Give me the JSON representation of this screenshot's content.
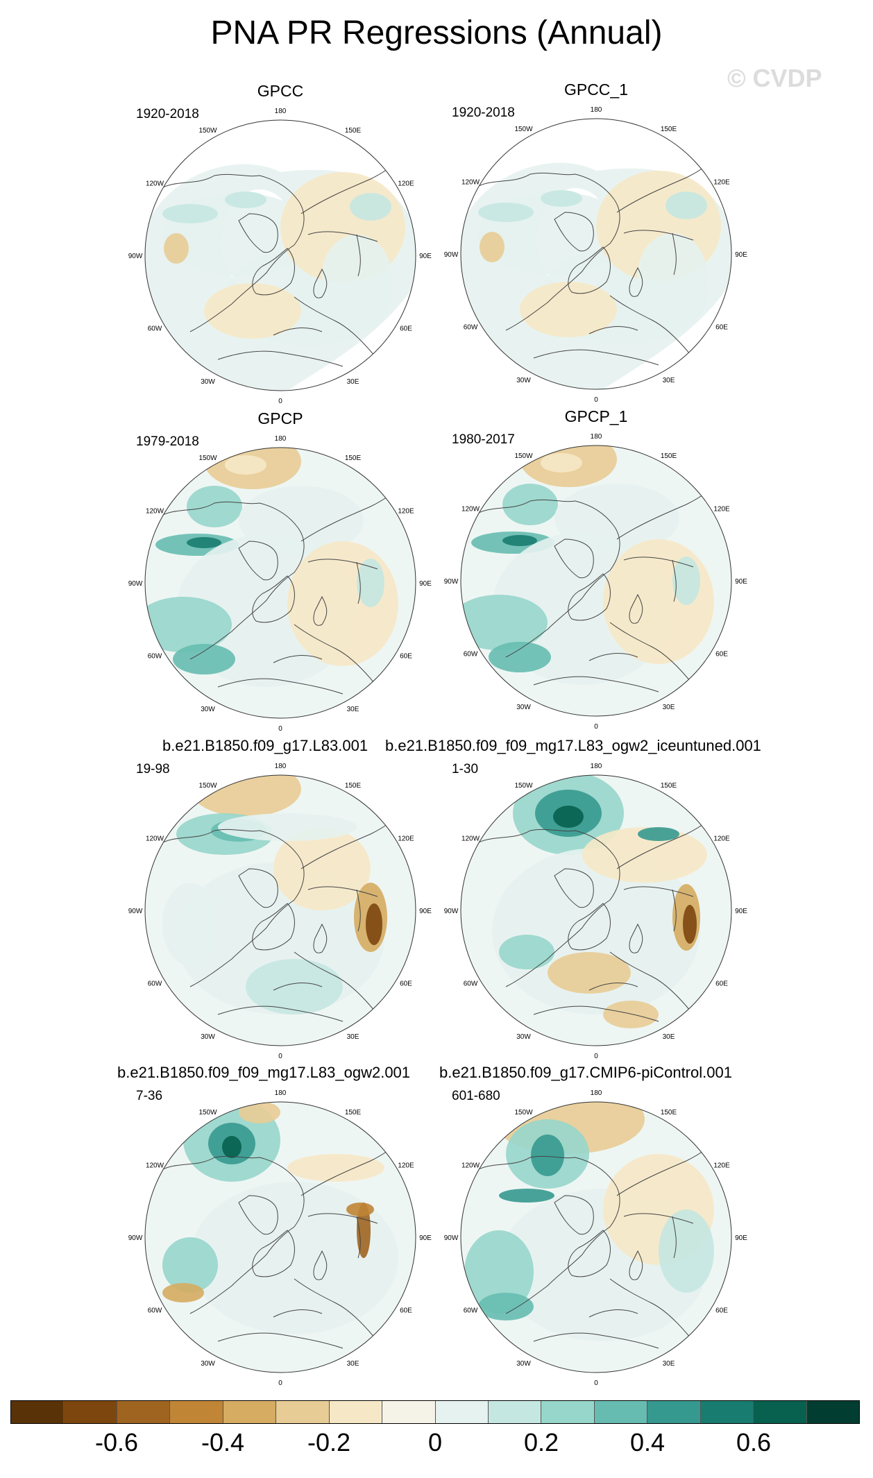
{
  "figure": {
    "title": "PNA PR Regressions (Annual)",
    "watermark": "© CVDP"
  },
  "longitude_labels": [
    "180",
    "150E",
    "120E",
    "90E",
    "60E",
    "30E",
    "0",
    "30W",
    "60W",
    "90W",
    "120W",
    "150W"
  ],
  "panels": [
    {
      "title": "GPCC",
      "period": "1920-2018",
      "style": "gpcc"
    },
    {
      "title": "GPCC_1",
      "period": "1920-2018",
      "style": "gpcc"
    },
    {
      "title": "GPCP",
      "period": "1979-2018",
      "style": "gpcp"
    },
    {
      "title": "GPCP_1",
      "period": "1980-2017",
      "style": "gpcp"
    },
    {
      "title": "b.e21.B1850.f09_g17.L83.001",
      "period": "19-98",
      "style": "model_a"
    },
    {
      "title": "b.e21.B1850.f09_f09_mg17.L83_ogw2_iceuntuned.001",
      "period": "1-30",
      "style": "model_b"
    },
    {
      "title": "b.e21.B1850.f09_f09_mg17.L83_ogw2.001",
      "period": "7-36",
      "style": "model_c"
    },
    {
      "title": "b.e21.B1850.f09_g17.CMIP6-piControl.001",
      "period": "601-680",
      "style": "model_d"
    }
  ],
  "colorbar": {
    "colors": [
      "#5a3208",
      "#7d460f",
      "#9f6420",
      "#c08535",
      "#d5ac61",
      "#e8cc95",
      "#f6e8c6",
      "#f5f2e8",
      "#e6f2f0",
      "#c5e7e1",
      "#97d6cb",
      "#66bcb0",
      "#36998f",
      "#197c70",
      "#08604f",
      "#013d30"
    ],
    "ticks": [
      "-0.6",
      "-0.4",
      "-0.2",
      "0",
      "0.2",
      "0.4",
      "0.6"
    ],
    "tick_values": [
      -0.6,
      -0.4,
      -0.2,
      0,
      0.2,
      0.4,
      0.6
    ],
    "min": -0.8,
    "max": 0.8
  }
}
